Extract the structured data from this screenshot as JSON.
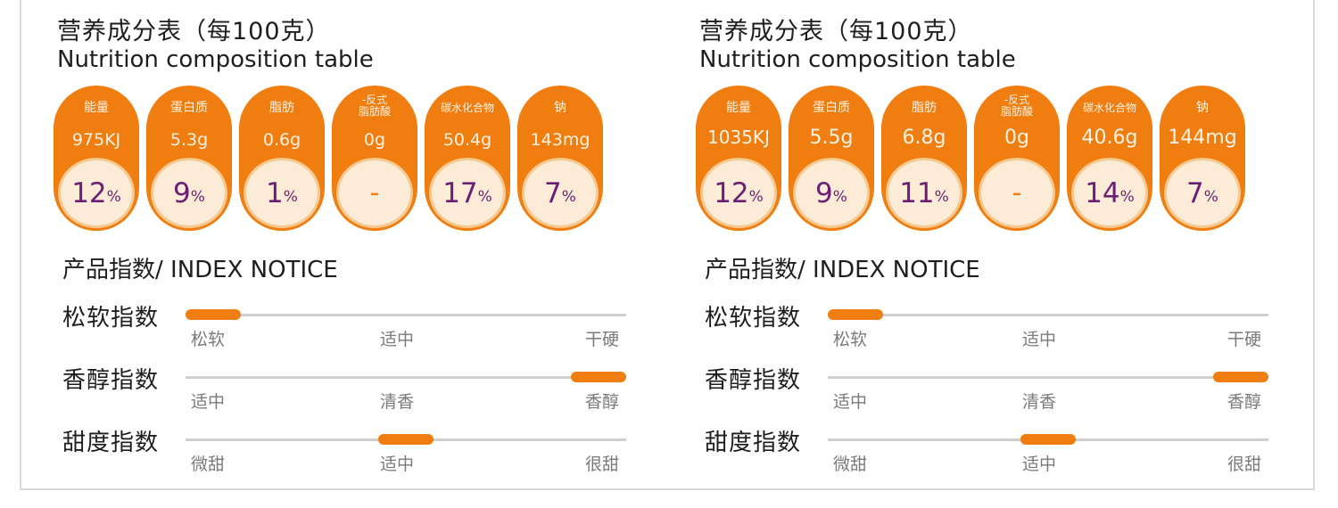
{
  "accent_color": "#ef7d10",
  "percent_color": "#6a1f74",
  "panels": [
    {
      "title_cn": "营养成分表（每100克）",
      "title_en": "Nutrition composition table",
      "nutrients": [
        {
          "label": "能量",
          "value": "975KJ",
          "percent": "12",
          "unit": "%"
        },
        {
          "label": "蛋白质",
          "value": "5.3g",
          "percent": "9",
          "unit": "%"
        },
        {
          "label": "脂肪",
          "value": "0.6g",
          "percent": "1",
          "unit": "%"
        },
        {
          "label": "-反式\n脂肪酸",
          "value": "0g",
          "percent": "-",
          "unit": ""
        },
        {
          "label": "碳水化合物",
          "value": "50.4g",
          "percent": "17",
          "unit": "%"
        },
        {
          "label": "钠",
          "value": "143mg",
          "percent": "7",
          "unit": "%"
        }
      ],
      "index_title": "产品指数/ INDEX NOTICE",
      "indices": [
        {
          "name": "松软指数",
          "ticks": [
            "松软",
            "适中",
            "干硬"
          ],
          "level": 0
        },
        {
          "name": "香醇指数",
          "ticks": [
            "适中",
            "清香",
            "香醇"
          ],
          "level": 1
        },
        {
          "name": "甜度指数",
          "ticks": [
            "微甜",
            "适中",
            "很甜"
          ],
          "level": 0.5
        }
      ]
    },
    {
      "title_cn": "营养成分表（每100克）",
      "title_en": "Nutrition composition table",
      "nutrients": [
        {
          "label": "能量",
          "value": "1035KJ",
          "percent": "12",
          "unit": "%"
        },
        {
          "label": "蛋白质",
          "value": "5.5g",
          "percent": "9",
          "unit": "%"
        },
        {
          "label": "脂肪",
          "value": "6.8g",
          "percent": "11",
          "unit": "%"
        },
        {
          "label": "-反式\n脂肪酸",
          "value": "0g",
          "percent": "-",
          "unit": ""
        },
        {
          "label": "碳水化合物",
          "value": "40.6g",
          "percent": "14",
          "unit": "%"
        },
        {
          "label": "钠",
          "value": "144mg",
          "percent": "7",
          "unit": "%"
        }
      ],
      "index_title": "产品指数/ INDEX NOTICE",
      "indices": [
        {
          "name": "松软指数",
          "ticks": [
            "松软",
            "适中",
            "干硬"
          ],
          "level": 0
        },
        {
          "name": "香醇指数",
          "ticks": [
            "适中",
            "清香",
            "香醇"
          ],
          "level": 1
        },
        {
          "name": "甜度指数",
          "ticks": [
            "微甜",
            "适中",
            "很甜"
          ],
          "level": 0.5
        }
      ]
    }
  ]
}
